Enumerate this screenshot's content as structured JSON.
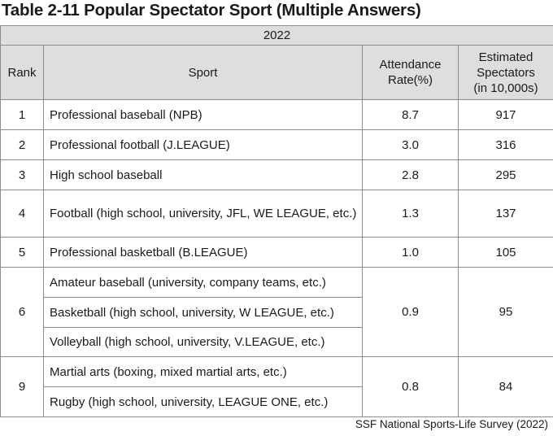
{
  "title": "Table 2-11  Popular Spectator Sport (Multiple Answers)",
  "year": "2022",
  "headers": {
    "rank": "Rank",
    "sport": "Sport",
    "attendance_line1": "Attendance",
    "attendance_line2": "Rate(%)",
    "spectators_line1": "Estimated",
    "spectators_line2": "Spectators",
    "spectators_line3": "(in 10,000s)"
  },
  "rows": [
    {
      "rank": "1",
      "sport": "Professional baseball (NPB)",
      "rate": "8.7",
      "spectators": "917"
    },
    {
      "rank": "2",
      "sport": "Professional football (J.LEAGUE)",
      "rate": "3.0",
      "spectators": "316"
    },
    {
      "rank": "3",
      "sport": "High school baseball",
      "rate": "2.8",
      "spectators": "295"
    },
    {
      "rank": "4",
      "sport": "Football (high school, university, JFL, WE LEAGUE, etc.)",
      "rate": "1.3",
      "spectators": "137"
    },
    {
      "rank": "5",
      "sport": "Professional basketball (B.LEAGUE)",
      "rate": "1.0",
      "spectators": "105"
    }
  ],
  "group6": {
    "rank": "6",
    "sports": [
      "Amateur baseball (university, company teams, etc.)",
      "Basketball (high school, university, W LEAGUE, etc.)",
      "Volleyball (high school, university, V.LEAGUE, etc.)"
    ],
    "rate": "0.9",
    "spectators": "95"
  },
  "group9": {
    "rank": "9",
    "sports": [
      "Martial arts (boxing, mixed martial arts, etc.)",
      "Rugby (high school, university, LEAGUE ONE, etc.)"
    ],
    "rate": "0.8",
    "spectators": "84"
  },
  "source": "SSF National Sports-Life Survey (2022)"
}
